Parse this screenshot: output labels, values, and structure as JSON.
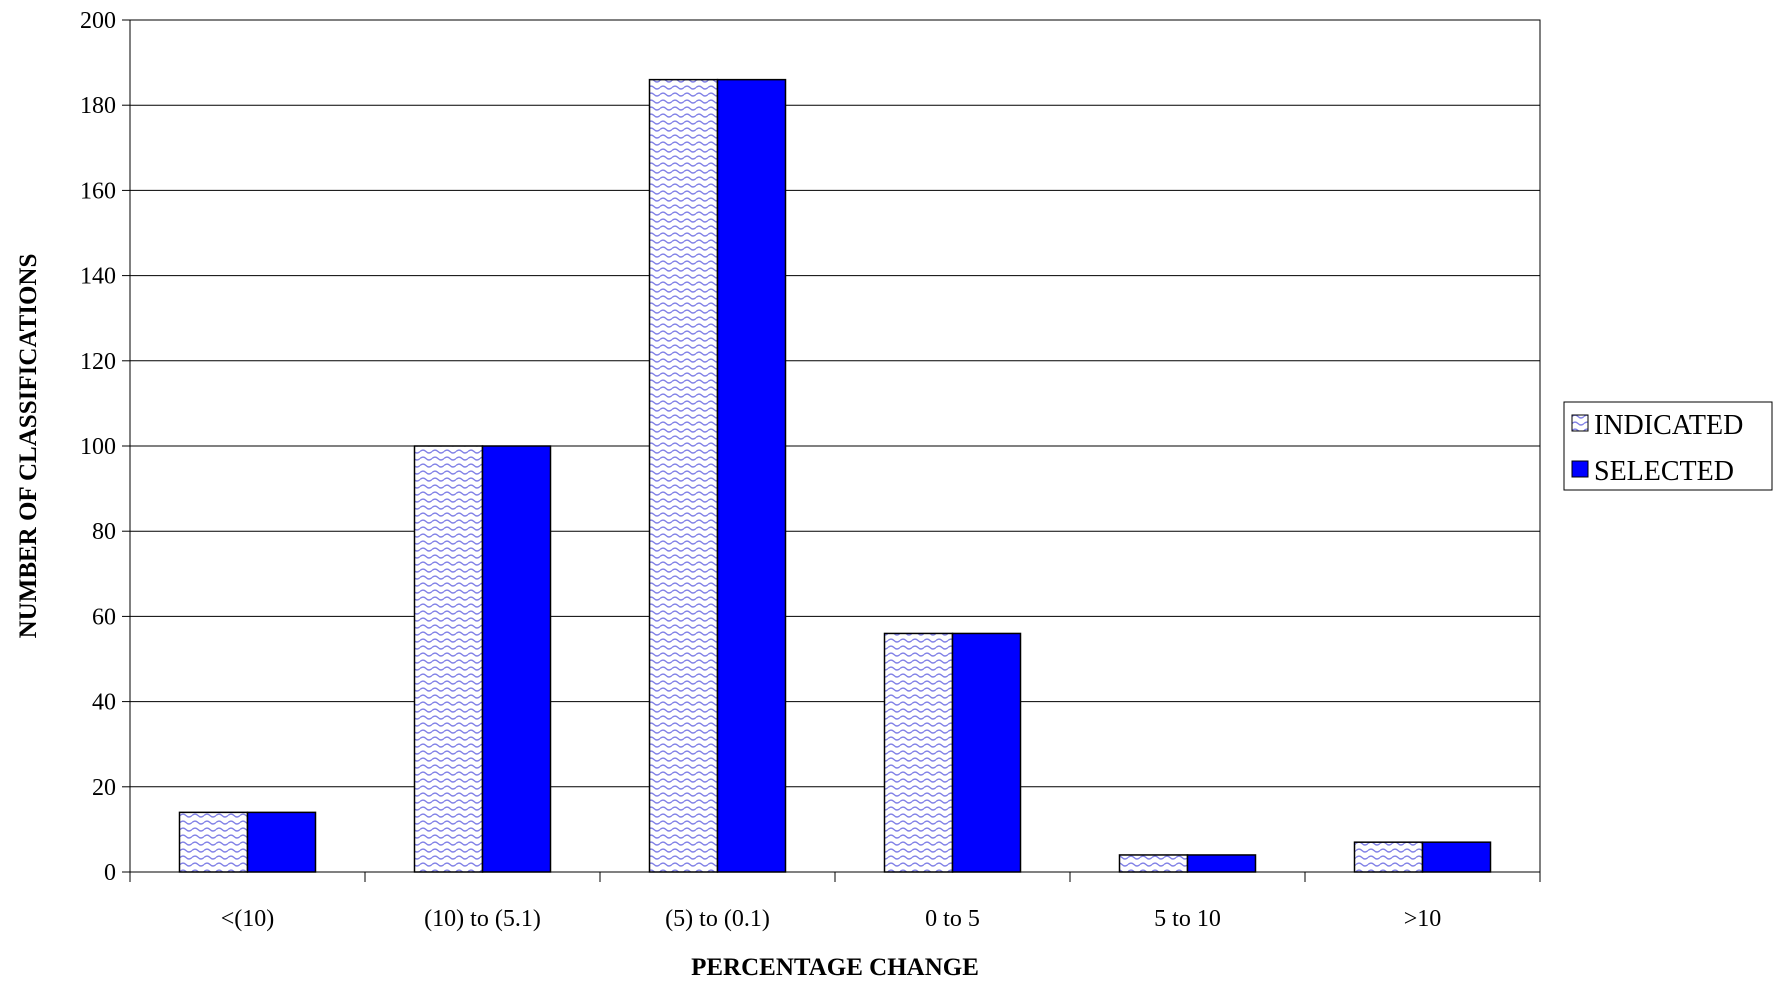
{
  "chart_data": {
    "type": "bar",
    "categories": [
      "<(10)",
      "(10) to (5.1)",
      "(5) to (0.1)",
      "0 to 5",
      "5 to 10",
      ">10"
    ],
    "series": [
      {
        "name": "INDICATED",
        "values": [
          14,
          100,
          186,
          56,
          4,
          7
        ],
        "color": "#c8c8ff",
        "pattern": "wavy-hatch"
      },
      {
        "name": "SELECTED",
        "values": [
          14,
          100,
          186,
          56,
          4,
          7
        ],
        "color": "#0000ff",
        "pattern": "solid"
      }
    ],
    "xlabel": "PERCENTAGE CHANGE",
    "ylabel": "NUMBER OF CLASSIFICATIONS",
    "ylim": [
      0,
      200
    ],
    "yticks": [
      0,
      20,
      40,
      60,
      80,
      100,
      120,
      140,
      160,
      180,
      200
    ],
    "grid": true,
    "legend_position": "right"
  }
}
